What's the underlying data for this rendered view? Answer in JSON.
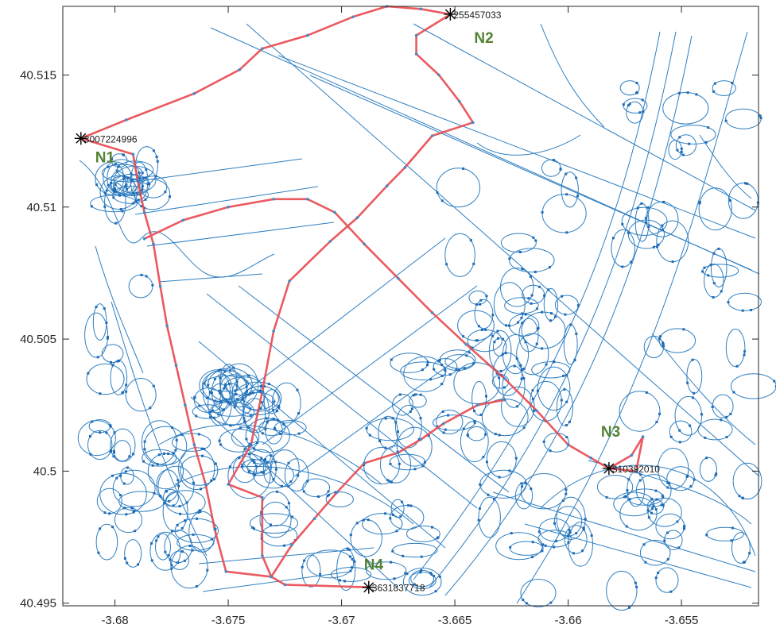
{
  "chart_data": {
    "type": "scatter",
    "title": "",
    "xlabel": "",
    "ylabel": "",
    "xlim": [
      -3.6823,
      -3.6516
    ],
    "ylim": [
      40.4949,
      40.5176
    ],
    "x_ticks": [
      -3.68,
      -3.675,
      -3.67,
      -3.665,
      -3.66,
      -3.655
    ],
    "x_tick_labels": [
      "-3.68",
      "-3.675",
      "-3.67",
      "-3.665",
      "-3.66",
      "-3.655"
    ],
    "y_ticks": [
      40.495,
      40.5,
      40.505,
      40.51,
      40.515
    ],
    "y_tick_labels": [
      "40.495",
      "40.5",
      "40.505",
      "40.51",
      "40.515"
    ],
    "grid": false,
    "colors": {
      "network": "#2f7fc1",
      "route": "#e8494f",
      "marker": "#000000",
      "tag": "#548235",
      "axis": "#262626"
    },
    "nodes": [
      {
        "name": "N1",
        "id": "3007224996",
        "x": -3.6815,
        "y": 40.5126
      },
      {
        "name": "N2",
        "id": "255457033",
        "x": -3.6652,
        "y": 40.5173
      },
      {
        "name": "N3",
        "id": "310392010",
        "x": -3.6582,
        "y": 40.5001
      },
      {
        "name": "N4",
        "id": "3631837718",
        "x": -3.6688,
        "y": 40.4956
      }
    ],
    "series": [
      {
        "name": "",
        "points": [
          [
            -3.6815,
            40.5126
          ],
          [
            -3.6795,
            40.5133
          ],
          [
            -3.6765,
            40.5143
          ],
          [
            -3.6745,
            40.5152
          ],
          [
            -3.6735,
            40.516
          ],
          [
            -3.6715,
            40.5165
          ],
          [
            -3.6695,
            40.5172
          ],
          [
            -3.668,
            40.5176
          ],
          [
            -3.6665,
            40.5175
          ],
          [
            -3.6652,
            40.5173
          ],
          [
            -3.6667,
            40.5165
          ],
          [
            -3.6667,
            40.5158
          ],
          [
            -3.6657,
            40.515
          ],
          [
            -3.6648,
            40.514
          ],
          [
            -3.6642,
            40.5132
          ],
          [
            -3.666,
            40.5127
          ],
          [
            -3.6672,
            40.5115
          ],
          [
            -3.668,
            40.5108
          ],
          [
            -3.6693,
            40.5096
          ],
          [
            -3.6705,
            40.5087
          ],
          [
            -3.6723,
            40.5072
          ],
          [
            -3.673,
            40.5053
          ],
          [
            -3.6735,
            40.503
          ],
          [
            -3.674,
            40.501
          ],
          [
            -3.675,
            40.4995
          ],
          [
            -3.6735,
            40.499
          ],
          [
            -3.6735,
            40.4968
          ],
          [
            -3.6731,
            40.496
          ],
          [
            -3.6725,
            40.4957
          ],
          [
            -3.6688,
            40.4956
          ]
        ]
      },
      {
        "name": "",
        "points": [
          [
            -3.6815,
            40.5126
          ],
          [
            -3.6792,
            40.512
          ],
          [
            -3.679,
            40.511
          ],
          [
            -3.6787,
            40.5098
          ],
          [
            -3.6783,
            40.5086
          ],
          [
            -3.678,
            40.507
          ],
          [
            -3.6777,
            40.5055
          ],
          [
            -3.6773,
            40.504
          ],
          [
            -3.6769,
            40.5025
          ],
          [
            -3.6765,
            40.501
          ],
          [
            -3.676,
            40.4995
          ],
          [
            -3.6756,
            40.4978
          ],
          [
            -3.6751,
            40.4962
          ],
          [
            -3.6731,
            40.496
          ]
        ]
      },
      {
        "name": "",
        "points": [
          [
            -3.6787,
            40.5088
          ],
          [
            -3.677,
            40.5095
          ],
          [
            -3.675,
            40.51
          ],
          [
            -3.673,
            40.5103
          ],
          [
            -3.6715,
            40.5103
          ],
          [
            -3.6703,
            40.5098
          ],
          [
            -3.669,
            40.5086
          ],
          [
            -3.6675,
            40.5073
          ],
          [
            -3.666,
            40.506
          ],
          [
            -3.6645,
            40.5048
          ],
          [
            -3.6628,
            40.5035
          ],
          [
            -3.6614,
            40.5023
          ],
          [
            -3.66,
            40.501
          ],
          [
            -3.659,
            40.5005
          ],
          [
            -3.6582,
            40.5001
          ],
          [
            -3.6572,
            40.5006
          ],
          [
            -3.6567,
            40.5013
          ],
          [
            -3.657,
            40.5
          ],
          [
            -3.6582,
            40.5001
          ]
        ]
      },
      {
        "name": "",
        "points": [
          [
            -3.6628,
            40.5027
          ],
          [
            -3.664,
            40.5025
          ],
          [
            -3.6655,
            40.5018
          ],
          [
            -3.6665,
            40.5012
          ],
          [
            -3.6675,
            40.5007
          ],
          [
            -3.669,
            40.5003
          ],
          [
            -3.6702,
            40.4992
          ],
          [
            -3.6712,
            40.4982
          ],
          [
            -3.6722,
            40.4972
          ],
          [
            -3.6731,
            40.496
          ]
        ]
      }
    ]
  }
}
